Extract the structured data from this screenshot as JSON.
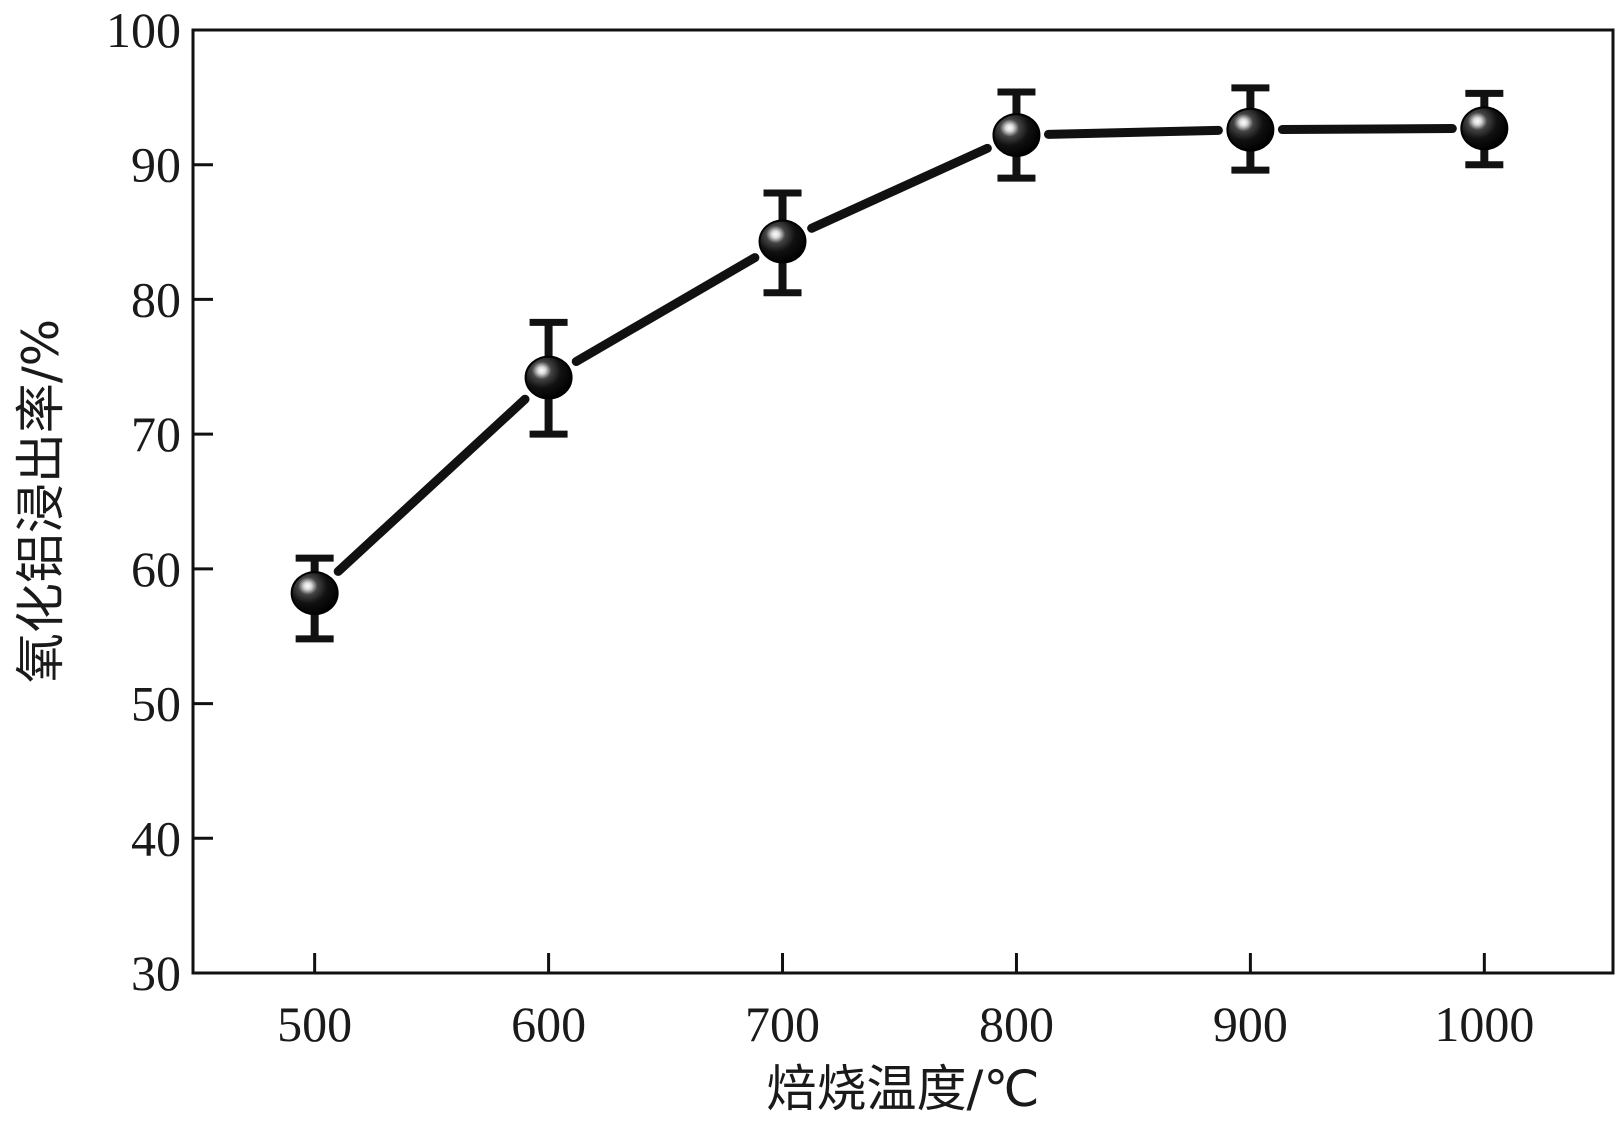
{
  "chart_data": {
    "type": "line",
    "xlabel": "焙烧温度/℃",
    "ylabel": "氧化铝浸出率/%",
    "title": "",
    "x": [
      500,
      600,
      700,
      800,
      900,
      1000
    ],
    "x_tick_labels": [
      "500",
      "600",
      "700",
      "800",
      "900",
      "1000"
    ],
    "xlim": [
      448,
      1055
    ],
    "ylim": [
      30,
      100
    ],
    "y_ticks": [
      30,
      40,
      50,
      60,
      70,
      80,
      90,
      100
    ],
    "y_tick_labels": [
      "30",
      "40",
      "50",
      "60",
      "70",
      "80",
      "90",
      "100"
    ],
    "series": [
      {
        "values": [
          58.2,
          74.2,
          84.3,
          92.2,
          92.6,
          92.7
        ],
        "error_low": [
          54.8,
          70.0,
          80.5,
          89.0,
          89.6,
          90.0
        ],
        "error_high": [
          60.8,
          78.3,
          87.9,
          95.4,
          95.7,
          95.3
        ],
        "color": "#111111"
      }
    ],
    "grid": false,
    "legend": "none"
  }
}
